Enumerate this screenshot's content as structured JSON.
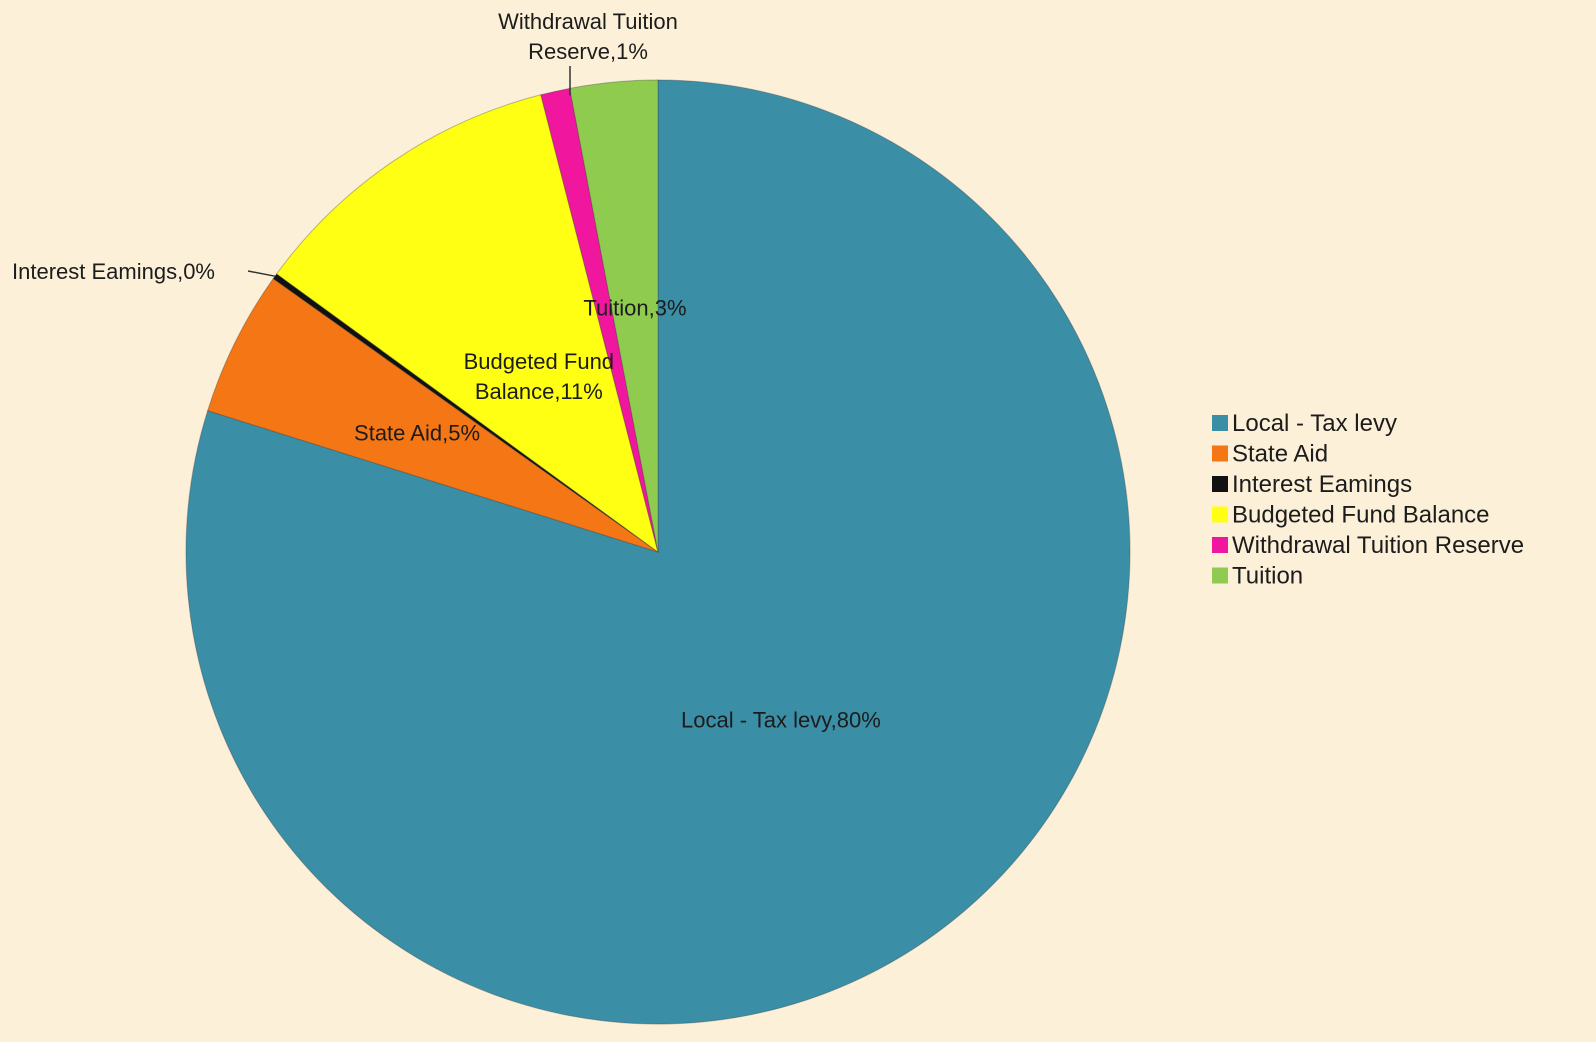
{
  "chart_data": {
    "type": "pie",
    "title": "",
    "slices": [
      {
        "name": "Local - Tax levy",
        "value": 80,
        "label": "Local - Tax levy,80%",
        "color": "#3a8ea6"
      },
      {
        "name": "State Aid",
        "value": 5,
        "label": "State Aid,5%",
        "color": "#f57614"
      },
      {
        "name": "Interest Earnings",
        "value": 0.2,
        "label": "Interest Eamings,0%",
        "color": "#111111"
      },
      {
        "name": "Budgeted Fund Balance",
        "value": 11,
        "label": "Budgeted Fund Balance,11%",
        "label_lines": [
          "Budgeted Fund",
          "Balance,11%"
        ],
        "color": "#ffff14"
      },
      {
        "name": "Withdrawal Tuition Reserve",
        "value": 1,
        "label": "Withdrawal Tuition Reserve,1%",
        "label_lines": [
          "Withdrawal Tuition",
          "Reserve,1%"
        ],
        "color": "#f0169e"
      },
      {
        "name": "Tuition",
        "value": 3,
        "label": "Tuition,3%",
        "color": "#8fcb4e"
      }
    ],
    "legend": {
      "placement": "right",
      "entries": [
        "Local - Tax levy",
        "State Aid",
        "Interest Eamings",
        "Budgeted Fund Balance",
        "Withdrawal Tuition Reserve",
        "Tuition"
      ]
    }
  }
}
